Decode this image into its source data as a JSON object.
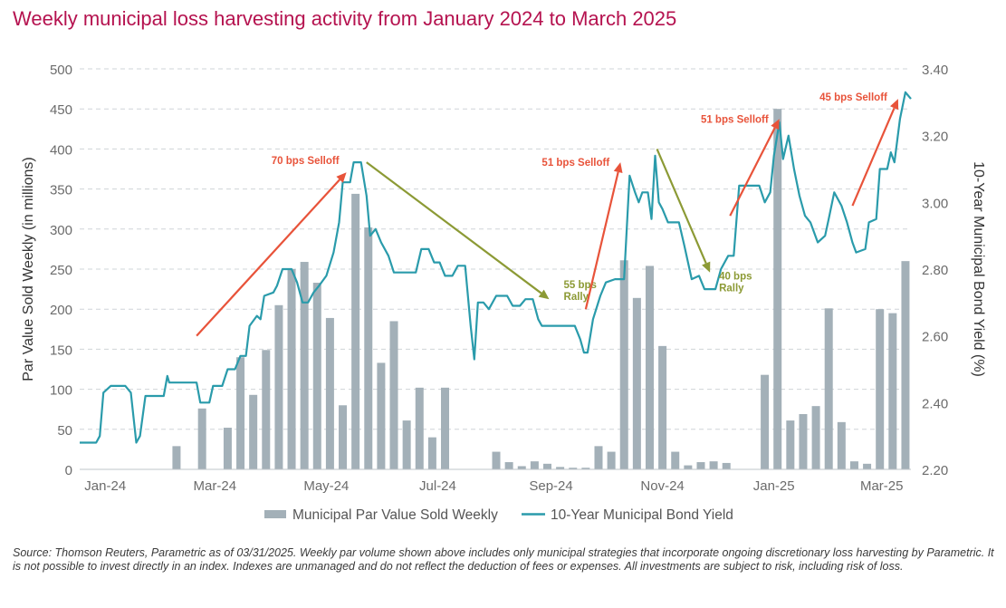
{
  "chart_data": {
    "type": "bar",
    "title": "Weekly municipal loss harvesting activity from January 2024 to March 2025",
    "ylabel": "Par Value Sold Weekly (in millions)",
    "y2label": "10-Year Municipal Bond Yield (%)",
    "ylim": [
      0,
      500
    ],
    "y2lim": [
      2.2,
      3.4
    ],
    "x_range": [
      "2024-01-01",
      "2025-03-31"
    ],
    "grid": "horizontal dashed",
    "legend_position": "bottom",
    "yticks": [
      "0",
      "50",
      "100",
      "150",
      "200",
      "250",
      "300",
      "350",
      "400",
      "450",
      "500"
    ],
    "y2ticks": [
      "2.20",
      "2.40",
      "2.60",
      "2.80",
      "3.00",
      "3.20",
      "3.40"
    ],
    "xticks": [
      {
        "label": "Jan-24",
        "date": "2024-01-15"
      },
      {
        "label": "Mar-24",
        "date": "2024-03-15"
      },
      {
        "label": "May-24",
        "date": "2024-05-15"
      },
      {
        "label": "Jul-24",
        "date": "2024-07-15"
      },
      {
        "label": "Sep-24",
        "date": "2024-09-15"
      },
      {
        "label": "Nov-24",
        "date": "2024-11-15"
      },
      {
        "label": "Jan-25",
        "date": "2025-01-15"
      },
      {
        "label": "Mar-25",
        "date": "2025-03-15"
      }
    ],
    "series": [
      {
        "name": "Municipal Par Value Sold Weekly",
        "kind": "bar",
        "color": "#a3b0b8",
        "points": [
          {
            "date": "2024-02-23",
            "value": 29
          },
          {
            "date": "2024-03-08",
            "value": 76
          },
          {
            "date": "2024-03-22",
            "value": 52
          },
          {
            "date": "2024-03-29",
            "value": 140
          },
          {
            "date": "2024-04-05",
            "value": 93
          },
          {
            "date": "2024-04-12",
            "value": 149
          },
          {
            "date": "2024-04-19",
            "value": 205
          },
          {
            "date": "2024-04-26",
            "value": 250
          },
          {
            "date": "2024-05-03",
            "value": 259
          },
          {
            "date": "2024-05-10",
            "value": 233
          },
          {
            "date": "2024-05-17",
            "value": 189
          },
          {
            "date": "2024-05-24",
            "value": 80
          },
          {
            "date": "2024-05-31",
            "value": 344
          },
          {
            "date": "2024-06-07",
            "value": 302
          },
          {
            "date": "2024-06-14",
            "value": 133
          },
          {
            "date": "2024-06-21",
            "value": 185
          },
          {
            "date": "2024-06-28",
            "value": 61
          },
          {
            "date": "2024-07-05",
            "value": 102
          },
          {
            "date": "2024-07-12",
            "value": 40
          },
          {
            "date": "2024-07-19",
            "value": 102
          },
          {
            "date": "2024-08-16",
            "value": 22
          },
          {
            "date": "2024-08-23",
            "value": 9
          },
          {
            "date": "2024-08-30",
            "value": 4
          },
          {
            "date": "2024-09-06",
            "value": 10
          },
          {
            "date": "2024-09-13",
            "value": 7
          },
          {
            "date": "2024-09-20",
            "value": 3
          },
          {
            "date": "2024-09-27",
            "value": 2
          },
          {
            "date": "2024-10-04",
            "value": 2
          },
          {
            "date": "2024-10-11",
            "value": 29
          },
          {
            "date": "2024-10-18",
            "value": 22
          },
          {
            "date": "2024-10-25",
            "value": 261
          },
          {
            "date": "2024-11-01",
            "value": 214
          },
          {
            "date": "2024-11-08",
            "value": 254
          },
          {
            "date": "2024-11-15",
            "value": 154
          },
          {
            "date": "2024-11-22",
            "value": 22
          },
          {
            "date": "2024-11-29",
            "value": 5
          },
          {
            "date": "2024-12-06",
            "value": 9
          },
          {
            "date": "2024-12-13",
            "value": 10
          },
          {
            "date": "2024-12-20",
            "value": 8
          },
          {
            "date": "2025-01-10",
            "value": 118
          },
          {
            "date": "2025-01-17",
            "value": 450
          },
          {
            "date": "2025-01-24",
            "value": 61
          },
          {
            "date": "2025-01-31",
            "value": 69
          },
          {
            "date": "2025-02-07",
            "value": 79
          },
          {
            "date": "2025-02-14",
            "value": 201
          },
          {
            "date": "2025-02-21",
            "value": 59
          },
          {
            "date": "2025-02-28",
            "value": 10
          },
          {
            "date": "2025-03-07",
            "value": 7
          },
          {
            "date": "2025-03-14",
            "value": 200
          },
          {
            "date": "2025-03-21",
            "value": 195
          },
          {
            "date": "2025-03-28",
            "value": 260
          }
        ]
      },
      {
        "name": "10-Year Municipal Bond Yield",
        "kind": "line",
        "axis": "right",
        "color": "#2a9bab",
        "points": [
          {
            "date": "2024-01-01",
            "value": 2.28
          },
          {
            "date": "2024-01-10",
            "value": 2.28
          },
          {
            "date": "2024-01-12",
            "value": 2.3
          },
          {
            "date": "2024-01-14",
            "value": 2.43
          },
          {
            "date": "2024-01-18",
            "value": 2.45
          },
          {
            "date": "2024-01-26",
            "value": 2.45
          },
          {
            "date": "2024-01-29",
            "value": 2.43
          },
          {
            "date": "2024-02-01",
            "value": 2.28
          },
          {
            "date": "2024-02-03",
            "value": 2.3
          },
          {
            "date": "2024-02-06",
            "value": 2.42
          },
          {
            "date": "2024-02-16",
            "value": 2.42
          },
          {
            "date": "2024-02-18",
            "value": 2.48
          },
          {
            "date": "2024-02-19",
            "value": 2.46
          },
          {
            "date": "2024-03-05",
            "value": 2.46
          },
          {
            "date": "2024-03-07",
            "value": 2.4
          },
          {
            "date": "2024-03-12",
            "value": 2.4
          },
          {
            "date": "2024-03-14",
            "value": 2.45
          },
          {
            "date": "2024-03-19",
            "value": 2.45
          },
          {
            "date": "2024-03-22",
            "value": 2.5
          },
          {
            "date": "2024-03-26",
            "value": 2.5
          },
          {
            "date": "2024-03-29",
            "value": 2.54
          },
          {
            "date": "2024-04-01",
            "value": 2.54
          },
          {
            "date": "2024-04-03",
            "value": 2.63
          },
          {
            "date": "2024-04-07",
            "value": 2.66
          },
          {
            "date": "2024-04-09",
            "value": 2.65
          },
          {
            "date": "2024-04-11",
            "value": 2.72
          },
          {
            "date": "2024-04-16",
            "value": 2.73
          },
          {
            "date": "2024-04-18",
            "value": 2.75
          },
          {
            "date": "2024-04-21",
            "value": 2.8
          },
          {
            "date": "2024-04-26",
            "value": 2.8
          },
          {
            "date": "2024-04-29",
            "value": 2.76
          },
          {
            "date": "2024-05-02",
            "value": 2.7
          },
          {
            "date": "2024-05-05",
            "value": 2.7
          },
          {
            "date": "2024-05-08",
            "value": 2.73
          },
          {
            "date": "2024-05-11",
            "value": 2.75
          },
          {
            "date": "2024-05-15",
            "value": 2.78
          },
          {
            "date": "2024-05-19",
            "value": 2.85
          },
          {
            "date": "2024-05-22",
            "value": 2.94
          },
          {
            "date": "2024-05-24",
            "value": 3.06
          },
          {
            "date": "2024-05-28",
            "value": 3.06
          },
          {
            "date": "2024-05-30",
            "value": 3.12
          },
          {
            "date": "2024-06-03",
            "value": 3.12
          },
          {
            "date": "2024-06-06",
            "value": 3.02
          },
          {
            "date": "2024-06-08",
            "value": 2.9
          },
          {
            "date": "2024-06-11",
            "value": 2.92
          },
          {
            "date": "2024-06-14",
            "value": 2.88
          },
          {
            "date": "2024-06-18",
            "value": 2.84
          },
          {
            "date": "2024-06-21",
            "value": 2.79
          },
          {
            "date": "2024-06-24",
            "value": 2.79
          },
          {
            "date": "2024-07-03",
            "value": 2.79
          },
          {
            "date": "2024-07-06",
            "value": 2.86
          },
          {
            "date": "2024-07-10",
            "value": 2.86
          },
          {
            "date": "2024-07-13",
            "value": 2.82
          },
          {
            "date": "2024-07-16",
            "value": 2.82
          },
          {
            "date": "2024-07-19",
            "value": 2.78
          },
          {
            "date": "2024-07-23",
            "value": 2.78
          },
          {
            "date": "2024-07-26",
            "value": 2.81
          },
          {
            "date": "2024-07-30",
            "value": 2.81
          },
          {
            "date": "2024-08-02",
            "value": 2.63
          },
          {
            "date": "2024-08-04",
            "value": 2.53
          },
          {
            "date": "2024-08-06",
            "value": 2.7
          },
          {
            "date": "2024-08-09",
            "value": 2.7
          },
          {
            "date": "2024-08-12",
            "value": 2.68
          },
          {
            "date": "2024-08-16",
            "value": 2.72
          },
          {
            "date": "2024-08-22",
            "value": 2.72
          },
          {
            "date": "2024-08-25",
            "value": 2.69
          },
          {
            "date": "2024-08-29",
            "value": 2.69
          },
          {
            "date": "2024-09-01",
            "value": 2.71
          },
          {
            "date": "2024-09-05",
            "value": 2.71
          },
          {
            "date": "2024-09-08",
            "value": 2.65
          },
          {
            "date": "2024-09-10",
            "value": 2.63
          },
          {
            "date": "2024-09-28",
            "value": 2.63
          },
          {
            "date": "2024-10-01",
            "value": 2.59
          },
          {
            "date": "2024-10-03",
            "value": 2.55
          },
          {
            "date": "2024-10-05",
            "value": 2.55
          },
          {
            "date": "2024-10-08",
            "value": 2.65
          },
          {
            "date": "2024-10-12",
            "value": 2.72
          },
          {
            "date": "2024-10-15",
            "value": 2.76
          },
          {
            "date": "2024-10-20",
            "value": 2.77
          },
          {
            "date": "2024-10-25",
            "value": 2.77
          },
          {
            "date": "2024-10-28",
            "value": 3.08
          },
          {
            "date": "2024-10-31",
            "value": 3.03
          },
          {
            "date": "2024-11-02",
            "value": 3.0
          },
          {
            "date": "2024-11-04",
            "value": 3.03
          },
          {
            "date": "2024-11-07",
            "value": 3.03
          },
          {
            "date": "2024-11-09",
            "value": 2.95
          },
          {
            "date": "2024-11-11",
            "value": 3.14
          },
          {
            "date": "2024-11-13",
            "value": 3.0
          },
          {
            "date": "2024-11-15",
            "value": 2.98
          },
          {
            "date": "2024-11-18",
            "value": 2.94
          },
          {
            "date": "2024-11-24",
            "value": 2.94
          },
          {
            "date": "2024-11-27",
            "value": 2.87
          },
          {
            "date": "2024-12-01",
            "value": 2.77
          },
          {
            "date": "2024-12-05",
            "value": 2.78
          },
          {
            "date": "2024-12-08",
            "value": 2.74
          },
          {
            "date": "2024-12-14",
            "value": 2.74
          },
          {
            "date": "2024-12-17",
            "value": 2.8
          },
          {
            "date": "2024-12-21",
            "value": 2.84
          },
          {
            "date": "2024-12-24",
            "value": 2.84
          },
          {
            "date": "2024-12-27",
            "value": 3.05
          },
          {
            "date": "2025-01-07",
            "value": 3.05
          },
          {
            "date": "2025-01-10",
            "value": 3.0
          },
          {
            "date": "2025-01-13",
            "value": 3.03
          },
          {
            "date": "2025-01-15",
            "value": 3.14
          },
          {
            "date": "2025-01-18",
            "value": 3.24
          },
          {
            "date": "2025-01-20",
            "value": 3.13
          },
          {
            "date": "2025-01-23",
            "value": 3.2
          },
          {
            "date": "2025-01-26",
            "value": 3.1
          },
          {
            "date": "2025-01-29",
            "value": 3.02
          },
          {
            "date": "2025-02-01",
            "value": 2.96
          },
          {
            "date": "2025-02-04",
            "value": 2.94
          },
          {
            "date": "2025-02-08",
            "value": 2.88
          },
          {
            "date": "2025-02-12",
            "value": 2.9
          },
          {
            "date": "2025-02-14",
            "value": 2.95
          },
          {
            "date": "2025-02-17",
            "value": 3.03
          },
          {
            "date": "2025-02-21",
            "value": 2.99
          },
          {
            "date": "2025-02-24",
            "value": 2.94
          },
          {
            "date": "2025-02-27",
            "value": 2.88
          },
          {
            "date": "2025-03-01",
            "value": 2.85
          },
          {
            "date": "2025-03-06",
            "value": 2.86
          },
          {
            "date": "2025-03-08",
            "value": 2.94
          },
          {
            "date": "2025-03-12",
            "value": 2.95
          },
          {
            "date": "2025-03-14",
            "value": 3.1
          },
          {
            "date": "2025-03-18",
            "value": 3.1
          },
          {
            "date": "2025-03-20",
            "value": 3.15
          },
          {
            "date": "2025-03-22",
            "value": 3.12
          },
          {
            "date": "2025-03-25",
            "value": 3.25
          },
          {
            "date": "2025-03-28",
            "value": 3.33
          },
          {
            "date": "2025-03-31",
            "value": 3.31
          }
        ]
      }
    ],
    "annotations": [
      {
        "label": "70 bps Selloff",
        "kind": "selloff",
        "color": "#e8533a",
        "from": {
          "date": "2024-03-05",
          "value": 2.6
        },
        "to": {
          "date": "2024-05-26",
          "value": 3.09
        }
      },
      {
        "label": "55 bps Rally",
        "kind": "rally",
        "color": "#8c9a35",
        "from": {
          "date": "2024-06-06",
          "value": 3.12
        },
        "to": {
          "date": "2024-09-14",
          "value": 2.71
        }
      },
      {
        "label": "51 bps Selloff",
        "kind": "selloff",
        "color": "#e8533a",
        "from": {
          "date": "2024-10-04",
          "value": 2.68
        },
        "to": {
          "date": "2024-10-23",
          "value": 3.12
        }
      },
      {
        "label": "40 bps Rally",
        "kind": "rally",
        "color": "#8c9a35",
        "from": {
          "date": "2024-11-12",
          "value": 3.16
        },
        "to": {
          "date": "2024-12-11",
          "value": 2.79
        }
      },
      {
        "label": "51 bps Selloff",
        "kind": "selloff",
        "color": "#e8533a",
        "from": {
          "date": "2024-12-22",
          "value": 2.96
        },
        "to": {
          "date": "2025-01-18",
          "value": 3.25
        }
      },
      {
        "label": "45 bps Selloff",
        "kind": "selloff",
        "color": "#e8533a",
        "from": {
          "date": "2025-02-27",
          "value": 2.99
        },
        "to": {
          "date": "2025-03-24",
          "value": 3.31
        }
      }
    ]
  },
  "source_note": "Source: Thomson Reuters, Parametric as of 03/31/2025. Weekly par volume shown above includes only municipal strategies that incorporate ongoing discretionary loss harvesting by Parametric. It is not possible to invest directly in an index. Indexes are unmanaged and do not reflect the deduction of fees or expenses. All investments are subject to risk, including risk of loss."
}
